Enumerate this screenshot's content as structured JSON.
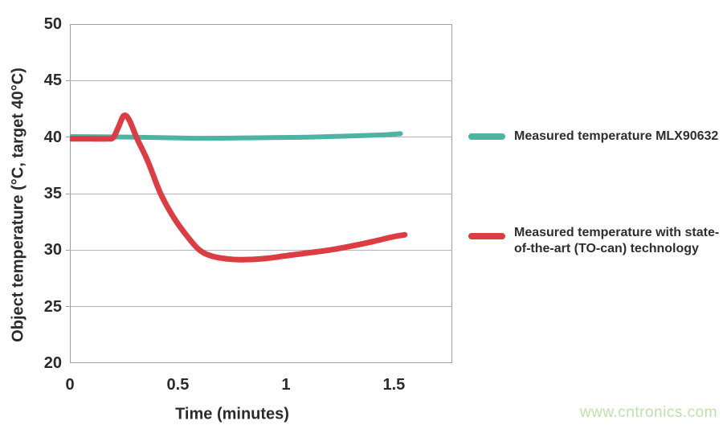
{
  "chart_data": {
    "type": "line",
    "title": "",
    "xlabel": "Time (minutes)",
    "ylabel": "Object temperature (°C, target 40°C)",
    "xlim": [
      0,
      1.77
    ],
    "ylim": [
      20,
      50
    ],
    "x_ticks": [
      0,
      0.5,
      1,
      1.5
    ],
    "x_tick_labels": [
      "0",
      "0.5",
      "1",
      "1.5"
    ],
    "y_ticks": [
      20,
      25,
      30,
      35,
      40,
      45,
      50
    ],
    "y_tick_labels": [
      "20",
      "25",
      "30",
      "35",
      "40",
      "45",
      "50"
    ],
    "grid": "horizontal",
    "legend_position": "right",
    "series": [
      {
        "name": "Measured temperature MLX90632",
        "color": "#4db3a3",
        "stroke_width": 6,
        "points": [
          [
            0,
            40.05
          ],
          [
            0.3,
            40.0
          ],
          [
            0.6,
            39.9
          ],
          [
            0.9,
            39.95
          ],
          [
            1.1,
            40.0
          ],
          [
            1.3,
            40.1
          ],
          [
            1.45,
            40.2
          ],
          [
            1.53,
            40.3
          ]
        ]
      },
      {
        "name": "Measured temperature with state-of-the-art (TO-can) technology",
        "color": "#dc3d43",
        "stroke_width": 7,
        "points": [
          [
            0,
            39.85
          ],
          [
            0.1,
            39.85
          ],
          [
            0.17,
            39.85
          ],
          [
            0.2,
            39.95
          ],
          [
            0.225,
            40.9
          ],
          [
            0.25,
            41.9
          ],
          [
            0.275,
            41.5
          ],
          [
            0.31,
            39.9
          ],
          [
            0.36,
            37.9
          ],
          [
            0.42,
            35.0
          ],
          [
            0.48,
            32.9
          ],
          [
            0.54,
            31.3
          ],
          [
            0.6,
            30.0
          ],
          [
            0.66,
            29.45
          ],
          [
            0.73,
            29.22
          ],
          [
            0.8,
            29.15
          ],
          [
            0.9,
            29.25
          ],
          [
            1.0,
            29.5
          ],
          [
            1.1,
            29.75
          ],
          [
            1.2,
            30.0
          ],
          [
            1.3,
            30.35
          ],
          [
            1.4,
            30.75
          ],
          [
            1.5,
            31.2
          ],
          [
            1.55,
            31.35
          ]
        ]
      }
    ],
    "legend": [
      {
        "label": "Measured temperature MLX90632",
        "color": "#4db3a3"
      },
      {
        "line1": "Measured temperature with state-",
        "line2": "of-the-art (TO-can) technology",
        "color": "#dc3d43"
      }
    ]
  },
  "watermark": "www.cntronics.com",
  "colors": {
    "axis_text": "#2b2b2b",
    "grid": "#b4b4b4",
    "plot_border": "#9e9e9e",
    "watermark": "#bee1aa",
    "teal_line": "#4db3a3",
    "red_line": "#dc3d43"
  }
}
